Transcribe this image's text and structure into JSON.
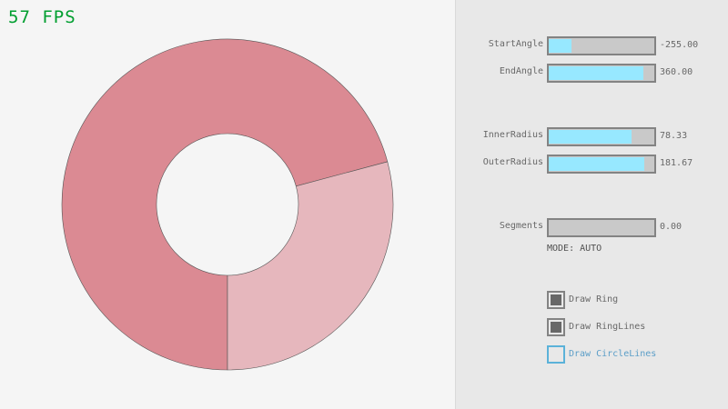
{
  "fps": "57 FPS",
  "colors": {
    "ring_light": "#e6b7bd",
    "ring_dark": "#db8a93",
    "slider_fill": "#97e8ff",
    "fps": "#009e2f"
  },
  "sliders": [
    {
      "label": "StartAngle",
      "value": "-255.00",
      "fraction": 0.217
    },
    {
      "label": "EndAngle",
      "value": "360.00",
      "fraction": 0.9
    },
    {
      "label": "InnerRadius",
      "value": "78.33",
      "fraction": 0.783
    },
    {
      "label": "OuterRadius",
      "value": "181.67",
      "fraction": 0.908
    },
    {
      "label": "Segments",
      "value": "0.00",
      "fraction": 0
    }
  ],
  "mode": "MODE: AUTO",
  "checkboxes": [
    {
      "label": "Draw Ring",
      "checked": true
    },
    {
      "label": "Draw RingLines",
      "checked": true
    },
    {
      "label": "Draw CircleLines",
      "checked": false
    }
  ]
}
